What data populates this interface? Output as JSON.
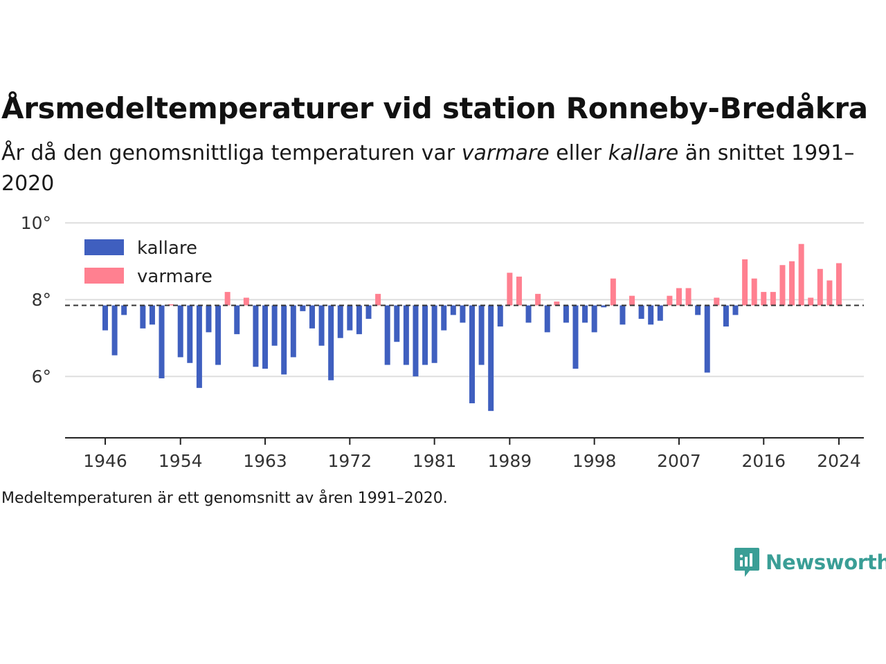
{
  "title": "Årsmedeltemperaturer vid station Ronneby-Bredåkra",
  "subtitle": {
    "part1": "År då den genomsnittliga temperaturen var ",
    "em1": "varmare",
    "part2": " eller ",
    "em2": "kallare",
    "part3": " än snittet 1991–2020"
  },
  "footnote": "Medeltemperaturen är ett genomsnitt av åren 1991–2020.",
  "logo": {
    "text": "Newsworthy",
    "icon": "newsworthy-chart-bubble-icon",
    "color": "#3a9e96"
  },
  "chart_data": {
    "type": "bar",
    "title": "Årsmedeltemperaturer vid station Ronneby-Bredåkra",
    "xlabel": "",
    "ylabel": "",
    "baseline": 7.85,
    "ylim": [
      4.4,
      10.4
    ],
    "yticks": [
      {
        "value": 6,
        "label": "6°"
      },
      {
        "value": 8,
        "label": "8°"
      },
      {
        "value": 10,
        "label": "10°"
      }
    ],
    "xticks": [
      1946,
      1954,
      1963,
      1972,
      1981,
      1989,
      1998,
      2007,
      2016,
      2024
    ],
    "grid": true,
    "legend": {
      "placement": "top-left"
    },
    "colors": {
      "kallare": "#3f5fbf",
      "varmare": "#ff8090",
      "baseline": "#333333"
    },
    "series": [
      {
        "name": "kallare",
        "key": "kallare"
      },
      {
        "name": "varmare",
        "key": "varmare"
      }
    ],
    "x": [
      1946,
      1947,
      1948,
      1950,
      1951,
      1952,
      1953,
      1954,
      1955,
      1956,
      1957,
      1958,
      1959,
      1960,
      1961,
      1962,
      1963,
      1964,
      1965,
      1966,
      1967,
      1968,
      1969,
      1970,
      1971,
      1972,
      1973,
      1974,
      1975,
      1976,
      1977,
      1978,
      1979,
      1980,
      1981,
      1982,
      1983,
      1984,
      1985,
      1986,
      1987,
      1988,
      1989,
      1990,
      1991,
      1992,
      1993,
      1994,
      1995,
      1996,
      1997,
      1998,
      1999,
      2000,
      2001,
      2002,
      2003,
      2004,
      2005,
      2006,
      2007,
      2008,
      2009,
      2010,
      2011,
      2012,
      2013,
      2014,
      2015,
      2016,
      2017,
      2018,
      2019,
      2020,
      2021,
      2022,
      2023,
      2024
    ],
    "values": [
      7.2,
      6.55,
      7.6,
      7.25,
      7.35,
      5.95,
      7.88,
      6.5,
      6.35,
      5.7,
      7.15,
      6.3,
      8.2,
      7.1,
      8.05,
      6.25,
      6.2,
      6.8,
      6.05,
      6.5,
      7.7,
      7.25,
      6.8,
      5.9,
      7.0,
      7.2,
      7.1,
      7.5,
      8.15,
      6.3,
      6.9,
      6.3,
      6.0,
      6.3,
      6.35,
      7.2,
      7.6,
      7.4,
      5.3,
      6.3,
      5.1,
      7.3,
      8.7,
      8.6,
      7.4,
      8.15,
      7.15,
      7.95,
      7.4,
      6.2,
      7.4,
      7.15,
      7.8,
      8.55,
      7.35,
      8.1,
      7.5,
      7.35,
      7.45,
      8.1,
      8.3,
      8.3,
      7.6,
      6.1,
      8.05,
      7.3,
      7.6,
      9.05,
      8.55,
      8.2,
      8.2,
      8.9,
      9.0,
      9.45,
      8.05,
      8.8,
      8.5,
      8.95
    ]
  }
}
